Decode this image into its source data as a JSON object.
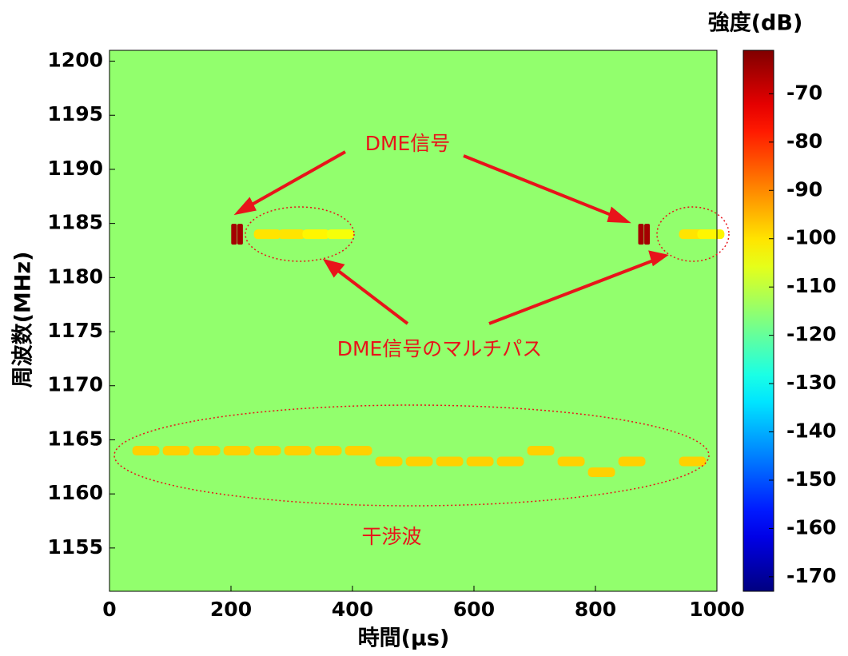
{
  "chart_data": {
    "type": "spectrogram",
    "xlabel": "時間(μs)",
    "ylabel": "周波数(MHz)",
    "colorbar_label": "強度(dB)",
    "colormap": "jet",
    "xlim": [
      0,
      1000
    ],
    "xticks": [
      0,
      200,
      400,
      600,
      800,
      1000
    ],
    "ylim": [
      1151,
      1201
    ],
    "yticks": [
      1155,
      1160,
      1165,
      1170,
      1175,
      1180,
      1185,
      1190,
      1195,
      1200
    ],
    "clim": [
      -173,
      -61
    ],
    "cticks": [
      -170,
      -160,
      -150,
      -140,
      -130,
      -120,
      -110,
      -100,
      -90,
      -80,
      -70
    ],
    "background_level": -115,
    "points": {
      "x": [
        205,
        215,
        875,
        885,
        260,
        300,
        340,
        380,
        960,
        990,
        60,
        110,
        160,
        210,
        260,
        310,
        360,
        410,
        460,
        510,
        560,
        610,
        660,
        710,
        760,
        810,
        860,
        960
      ],
      "y": [
        1184,
        1184,
        1184,
        1184,
        1184,
        1184,
        1184,
        1184,
        1184,
        1184,
        1164,
        1164,
        1164,
        1164,
        1164,
        1164,
        1164,
        1164,
        1163,
        1163,
        1163,
        1163,
        1163,
        1164,
        1163,
        1162,
        1163,
        1163
      ],
      "values": [
        -65,
        -65,
        -65,
        -65,
        -100,
        -100,
        -102,
        -104,
        -100,
        -102,
        -98,
        -98,
        -98,
        -98,
        -98,
        -98,
        -98,
        -98,
        -98,
        -98,
        -98,
        -98,
        -98,
        -98,
        -98,
        -98,
        -98,
        -98
      ]
    },
    "annotations": [
      "DME信号",
      "DME信号のマルチパス",
      "干渉波"
    ]
  }
}
